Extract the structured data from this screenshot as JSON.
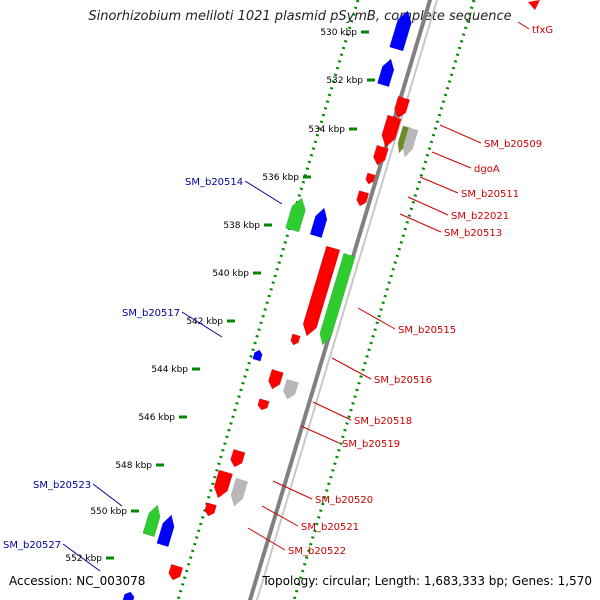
{
  "title": "Sinorhizobium meliloti 1021 plasmid pSymB, complete sequence",
  "accession": "Accession: NC_003078",
  "topology": "Topology: circular; Length: 1,683,333 bp; Genes: 1,570",
  "colors": {
    "forward_gene": "#ff0000",
    "reverse_gene": "#0000ff",
    "green_gene": "#2ecc2e",
    "gray_gene": "#b8b8b8",
    "olive_gene": "#6b8e23",
    "label_forward": "#cc0000",
    "label_reverse": "#000099",
    "tick": "#008800",
    "backbone": "#808080"
  },
  "scale": {
    "unit": "kbp",
    "labels": [
      "530 kbp",
      "532 kbp",
      "534 kbp",
      "536 kbp",
      "538 kbp",
      "540 kbp",
      "542 kbp",
      "544 kbp",
      "546 kbp",
      "548 kbp",
      "550 kbp",
      "552 kbp"
    ]
  },
  "genes": [
    {
      "name": "tfxG",
      "color": "forward_gene"
    },
    {
      "name": "",
      "color": "reverse_gene"
    },
    {
      "name": "",
      "color": "reverse_gene"
    },
    {
      "name": "",
      "color": "forward_gene"
    },
    {
      "name": "SM_b20509",
      "color": "forward_gene"
    },
    {
      "name": "",
      "color": "olive_gene"
    },
    {
      "name": "dgoA",
      "color": "gray_gene"
    },
    {
      "name": "SM_b20511",
      "color": "forward_gene"
    },
    {
      "name": "SM_b22021",
      "color": "forward_gene"
    },
    {
      "name": "SM_b20513",
      "color": "forward_gene"
    },
    {
      "name": "SM_b20514",
      "color": "green_gene"
    },
    {
      "name": "",
      "color": "reverse_gene"
    },
    {
      "name": "SM_b20515",
      "color": "forward_gene"
    },
    {
      "name": "",
      "color": "green_gene"
    },
    {
      "name": "SM_b20516",
      "color": "forward_gene"
    },
    {
      "name": "SM_b20517",
      "color": "reverse_gene"
    },
    {
      "name": "",
      "color": "forward_gene"
    },
    {
      "name": "",
      "color": "gray_gene"
    },
    {
      "name": "SM_b20518",
      "color": "forward_gene"
    },
    {
      "name": "SM_b20519",
      "color": "forward_gene"
    },
    {
      "name": "",
      "color": "forward_gene"
    },
    {
      "name": "SM_b20520",
      "color": "forward_gene"
    },
    {
      "name": "",
      "color": "gray_gene"
    },
    {
      "name": "SM_b20521",
      "color": "forward_gene"
    },
    {
      "name": "SM_b20522",
      "color": "forward_gene"
    },
    {
      "name": "SM_b20523",
      "color": "green_gene"
    },
    {
      "name": "",
      "color": "reverse_gene"
    },
    {
      "name": "SM_b20527",
      "color": "reverse_gene"
    },
    {
      "name": "",
      "color": "forward_gene"
    }
  ]
}
